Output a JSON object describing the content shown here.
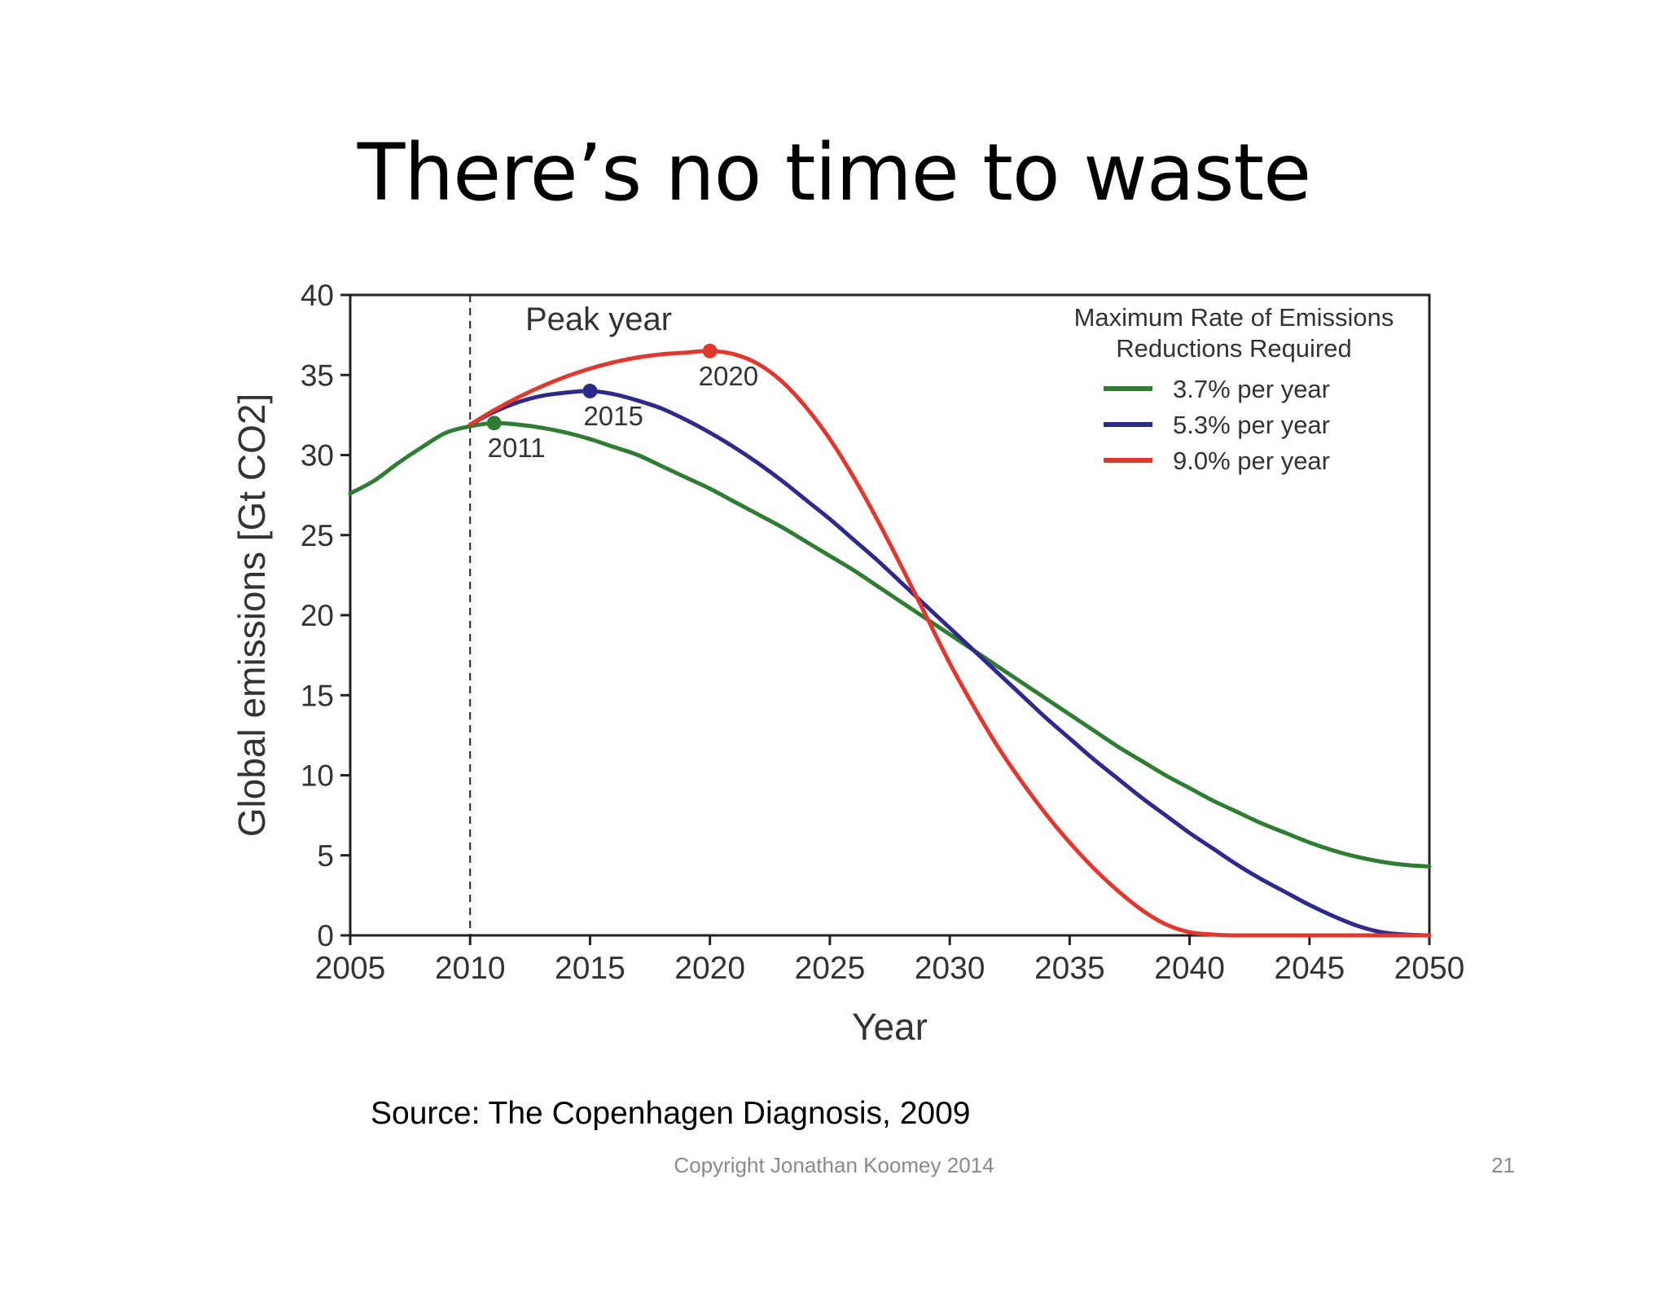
{
  "slide": {
    "title": "There’s no time to waste",
    "source": "Source:  The Copenhagen Diagnosis, 2009",
    "copyright": "Copyright Jonathan Koomey 2014",
    "page_number": "21"
  },
  "chart_data": {
    "type": "line",
    "xlabel": "Year",
    "ylabel": "Global emissions [Gt CO2]",
    "xlim": [
      2005,
      2050
    ],
    "ylim": [
      0,
      40
    ],
    "xticks": [
      2005,
      2010,
      2015,
      2020,
      2025,
      2030,
      2035,
      2040,
      2045,
      2050
    ],
    "yticks": [
      0,
      5,
      10,
      15,
      20,
      25,
      30,
      35,
      40
    ],
    "grid": false,
    "reference_line": {
      "x": 2010,
      "style": "dashed"
    },
    "annotation": "Peak year",
    "legend": {
      "title_lines": [
        "Maximum Rate of Emissions",
        "Reductions Required"
      ],
      "placement": "top-right"
    },
    "series": [
      {
        "name": "3.7% per year",
        "color": "#2e7d32",
        "peak": {
          "x": 2011,
          "y": 32,
          "label": "2011"
        },
        "points": [
          [
            2005,
            27.6
          ],
          [
            2006,
            28.4
          ],
          [
            2007,
            29.5
          ],
          [
            2008,
            30.5
          ],
          [
            2009,
            31.4
          ],
          [
            2010,
            31.8
          ],
          [
            2011,
            32.0
          ],
          [
            2012,
            31.9
          ],
          [
            2013,
            31.7
          ],
          [
            2014,
            31.4
          ],
          [
            2015,
            31.0
          ],
          [
            2016,
            30.5
          ],
          [
            2017,
            30.0
          ],
          [
            2018,
            29.3
          ],
          [
            2019,
            28.6
          ],
          [
            2020,
            27.9
          ],
          [
            2021,
            27.1
          ],
          [
            2022,
            26.3
          ],
          [
            2023,
            25.5
          ],
          [
            2024,
            24.6
          ],
          [
            2025,
            23.7
          ],
          [
            2026,
            22.8
          ],
          [
            2027,
            21.8
          ],
          [
            2028,
            20.8
          ],
          [
            2029,
            19.8
          ],
          [
            2030,
            18.8
          ],
          [
            2031,
            17.8
          ],
          [
            2032,
            16.8
          ],
          [
            2033,
            15.8
          ],
          [
            2034,
            14.8
          ],
          [
            2035,
            13.8
          ],
          [
            2036,
            12.8
          ],
          [
            2037,
            11.8
          ],
          [
            2038,
            10.9
          ],
          [
            2039,
            10.0
          ],
          [
            2040,
            9.2
          ],
          [
            2041,
            8.4
          ],
          [
            2042,
            7.7
          ],
          [
            2043,
            7.0
          ],
          [
            2044,
            6.4
          ],
          [
            2045,
            5.8
          ],
          [
            2046,
            5.3
          ],
          [
            2047,
            4.9
          ],
          [
            2048,
            4.6
          ],
          [
            2049,
            4.4
          ],
          [
            2050,
            4.3
          ]
        ]
      },
      {
        "name": "5.3% per year",
        "color": "#2e2a8c",
        "peak": {
          "x": 2015,
          "y": 34,
          "label": "2015"
        },
        "points": [
          [
            2010,
            31.9
          ],
          [
            2011,
            32.7
          ],
          [
            2012,
            33.3
          ],
          [
            2013,
            33.7
          ],
          [
            2014,
            33.9
          ],
          [
            2015,
            34.0
          ],
          [
            2016,
            33.8
          ],
          [
            2017,
            33.4
          ],
          [
            2018,
            32.9
          ],
          [
            2019,
            32.2
          ],
          [
            2020,
            31.4
          ],
          [
            2021,
            30.5
          ],
          [
            2022,
            29.5
          ],
          [
            2023,
            28.4
          ],
          [
            2024,
            27.2
          ],
          [
            2025,
            26.0
          ],
          [
            2026,
            24.7
          ],
          [
            2027,
            23.4
          ],
          [
            2028,
            22.0
          ],
          [
            2029,
            20.6
          ],
          [
            2030,
            19.2
          ],
          [
            2031,
            17.8
          ],
          [
            2032,
            16.4
          ],
          [
            2033,
            15.0
          ],
          [
            2034,
            13.6
          ],
          [
            2035,
            12.3
          ],
          [
            2036,
            11.0
          ],
          [
            2037,
            9.8
          ],
          [
            2038,
            8.6
          ],
          [
            2039,
            7.5
          ],
          [
            2040,
            6.4
          ],
          [
            2041,
            5.4
          ],
          [
            2042,
            4.4
          ],
          [
            2043,
            3.5
          ],
          [
            2044,
            2.7
          ],
          [
            2045,
            1.9
          ],
          [
            2046,
            1.2
          ],
          [
            2047,
            0.6
          ],
          [
            2048,
            0.2
          ],
          [
            2049,
            0.05
          ],
          [
            2050,
            0.0
          ]
        ]
      },
      {
        "name": "9.0% per year",
        "color": "#e2372d",
        "peak": {
          "x": 2020,
          "y": 36.5,
          "label": "2020"
        },
        "points": [
          [
            2010,
            31.9
          ],
          [
            2011,
            32.8
          ],
          [
            2012,
            33.6
          ],
          [
            2013,
            34.3
          ],
          [
            2014,
            34.9
          ],
          [
            2015,
            35.4
          ],
          [
            2016,
            35.8
          ],
          [
            2017,
            36.1
          ],
          [
            2018,
            36.3
          ],
          [
            2019,
            36.4
          ],
          [
            2020,
            36.5
          ],
          [
            2021,
            36.3
          ],
          [
            2022,
            35.7
          ],
          [
            2023,
            34.6
          ],
          [
            2024,
            33.0
          ],
          [
            2025,
            31.0
          ],
          [
            2026,
            28.6
          ],
          [
            2027,
            25.9
          ],
          [
            2028,
            23.0
          ],
          [
            2029,
            20.0
          ],
          [
            2030,
            17.0
          ],
          [
            2031,
            14.3
          ],
          [
            2032,
            11.8
          ],
          [
            2033,
            9.6
          ],
          [
            2034,
            7.6
          ],
          [
            2035,
            5.8
          ],
          [
            2036,
            4.2
          ],
          [
            2037,
            2.8
          ],
          [
            2038,
            1.6
          ],
          [
            2039,
            0.7
          ],
          [
            2040,
            0.2
          ],
          [
            2041,
            0.05
          ],
          [
            2042,
            0.0
          ],
          [
            2045,
            0.0
          ],
          [
            2050,
            0.0
          ]
        ]
      }
    ]
  }
}
